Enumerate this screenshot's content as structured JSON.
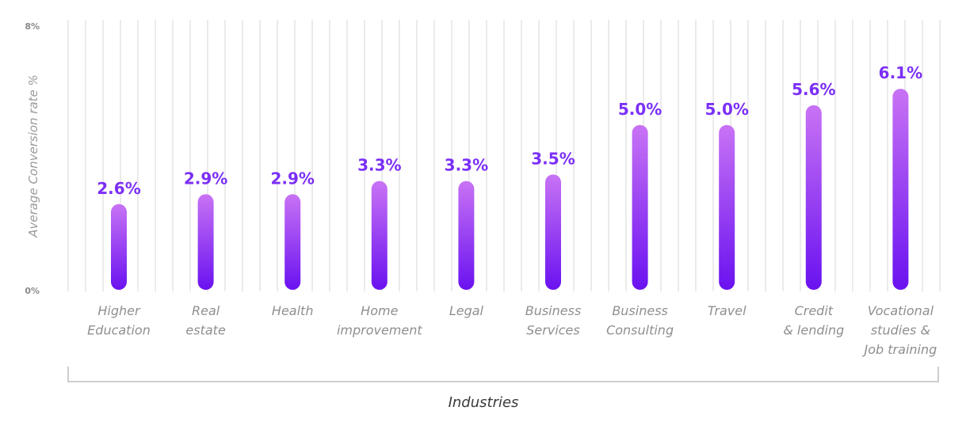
{
  "chart_data": {
    "type": "bar",
    "title": "",
    "xlabel": "Industries",
    "ylabel": "Average Conversion rate %",
    "ylim": [
      0,
      8
    ],
    "y_ticks": [
      "8%",
      "0%"
    ],
    "grid": true,
    "categories": [
      [
        "Higher",
        "Education"
      ],
      [
        "Real",
        "estate"
      ],
      [
        "Health"
      ],
      [
        "Home",
        "improvement"
      ],
      [
        "Legal"
      ],
      [
        "Business",
        "Services"
      ],
      [
        "Business",
        "Consulting"
      ],
      [
        "Travel"
      ],
      [
        "Credit",
        "& lending"
      ],
      [
        "Vocational",
        "studies &",
        "Job training"
      ]
    ],
    "values": [
      2.6,
      2.9,
      2.9,
      3.3,
      3.3,
      3.5,
      5.0,
      5.0,
      5.6,
      6.1
    ],
    "value_labels": [
      "2.6%",
      "2.9%",
      "2.9%",
      "3.3%",
      "3.3%",
      "3.5%",
      "5.0%",
      "5.0%",
      "5.6%",
      "6.1%"
    ],
    "colors": {
      "bar_top": "#c873f5",
      "bar_bottom": "#6a12f0",
      "label": "#7b2ff7",
      "grid": "#ebebeb"
    }
  }
}
